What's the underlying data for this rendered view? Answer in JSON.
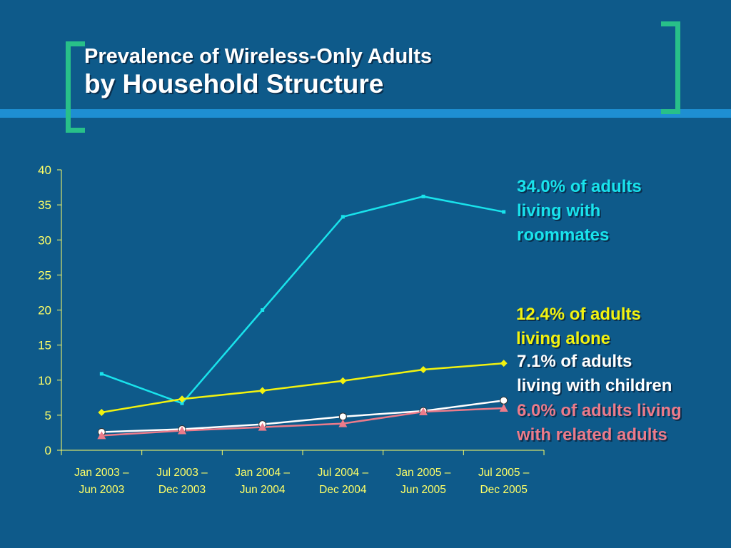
{
  "title": {
    "line1": "Prevalence of Wireless-Only Adults",
    "line2": "by Household Structure"
  },
  "colors": {
    "background": "#0e5a8a",
    "band": "#1e8fd2",
    "bracket": "#28c089",
    "axis": "#ffff66",
    "roommates": "#19e3ec",
    "alone": "#f2f20f",
    "children": "#ffffff",
    "related": "#ec7b8a"
  },
  "annotations": {
    "roommates": [
      "34.0% of adults",
      "living with",
      "roommates"
    ],
    "alone": [
      "12.4% of adults",
      "living alone"
    ],
    "children": [
      "7.1% of adults",
      "living with children"
    ],
    "related": [
      "6.0% of adults living",
      "with related adults"
    ]
  },
  "chart_data": {
    "type": "line",
    "title": "Prevalence of Wireless-Only Adults by Household Structure",
    "xlabel": "",
    "ylabel": "",
    "ylim": [
      0,
      40
    ],
    "yticks": [
      0,
      5,
      10,
      15,
      20,
      25,
      30,
      35,
      40
    ],
    "grid": false,
    "categories": [
      [
        "Jan 2003 –",
        "Jun 2003"
      ],
      [
        "Jul 2003 –",
        "Dec 2003"
      ],
      [
        "Jan 2004 –",
        "Jun 2004"
      ],
      [
        "Jul 2004 –",
        "Dec 2004"
      ],
      [
        "Jan 2005 –",
        "Jun 2005"
      ],
      [
        "Jul 2005 –",
        "Dec 2005"
      ]
    ],
    "series": [
      {
        "key": "roommates",
        "values": [
          10.9,
          6.7,
          20.0,
          33.3,
          36.2,
          34.0
        ],
        "marker": "square"
      },
      {
        "key": "alone",
        "values": [
          5.4,
          7.3,
          8.5,
          9.9,
          11.5,
          12.4
        ],
        "marker": "diamond"
      },
      {
        "key": "children",
        "values": [
          2.6,
          3.0,
          3.7,
          4.8,
          5.6,
          7.1
        ],
        "marker": "circle"
      },
      {
        "key": "related",
        "values": [
          2.1,
          2.8,
          3.3,
          3.8,
          5.5,
          6.0
        ],
        "marker": "triangle"
      }
    ]
  }
}
